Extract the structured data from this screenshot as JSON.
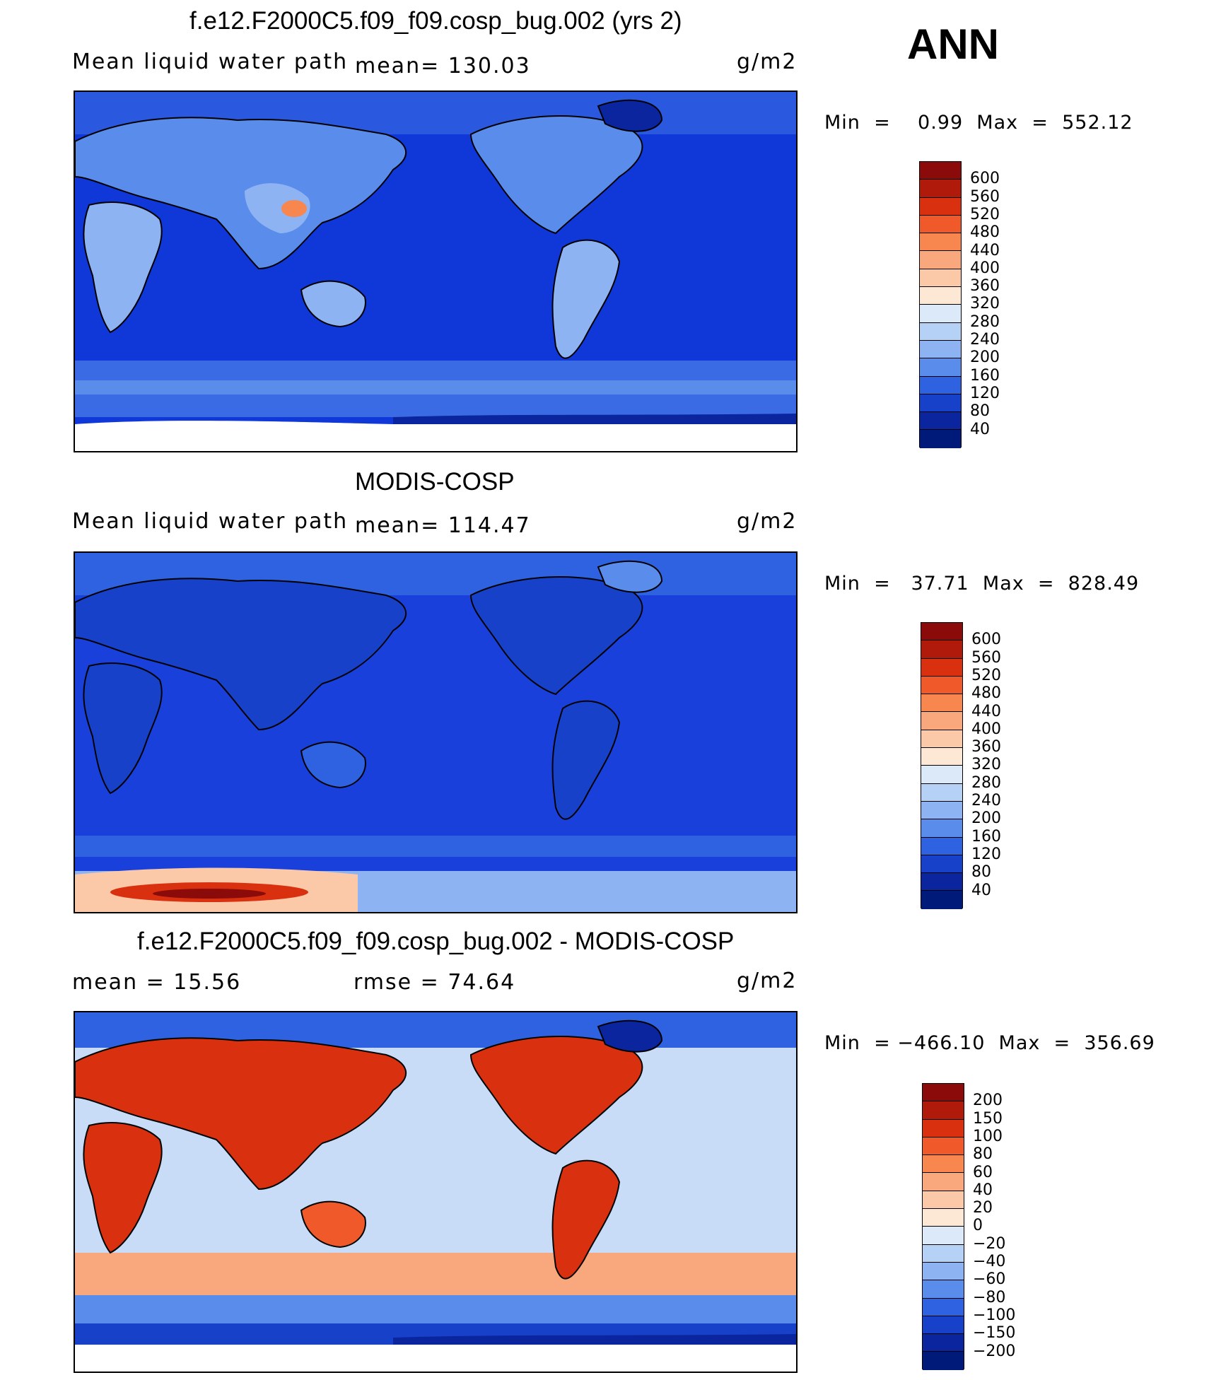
{
  "season": "ANN",
  "panels": [
    {
      "title": "f.e12.F2000C5.f09_f09.cosp_bug.002 (yrs 2)",
      "left_label": "Mean liquid water path",
      "center_label": "mean=  130.03",
      "units": "g/m2",
      "minmax": "Min  =    0.99  Max  =  552.12",
      "colorbar_labels": [
        "600",
        "560",
        "520",
        "480",
        "440",
        "400",
        "360",
        "320",
        "280",
        "240",
        "200",
        "160",
        "120",
        "80",
        "40"
      ],
      "colorbar_colors": [
        "#8b0a0a",
        "#b01a0a",
        "#d9300f",
        "#f05a2a",
        "#f7864f",
        "#f9a77c",
        "#fbc8a8",
        "#fde8d6",
        "#dbe9f9",
        "#b6d1f6",
        "#8eb3f2",
        "#5a8cec",
        "#2f62e0",
        "#1741c9",
        "#0b259e",
        "#001a7a"
      ],
      "map_base_color": "#1037d8"
    },
    {
      "title": "MODIS-COSP",
      "left_label": "Mean liquid water path",
      "center_label": "mean=  114.47",
      "units": "g/m2",
      "minmax": "Min  =   37.71  Max  =  828.49",
      "colorbar_labels": [
        "600",
        "560",
        "520",
        "480",
        "440",
        "400",
        "360",
        "320",
        "280",
        "240",
        "200",
        "160",
        "120",
        "80",
        "40"
      ],
      "colorbar_colors": [
        "#8b0a0a",
        "#b01a0a",
        "#d9300f",
        "#f05a2a",
        "#f7864f",
        "#f9a77c",
        "#fbc8a8",
        "#fde8d6",
        "#dbe9f9",
        "#b6d1f6",
        "#8eb3f2",
        "#5a8cec",
        "#2f62e0",
        "#1741c9",
        "#0b259e",
        "#001a7a"
      ],
      "map_base_color": "#1a40dc"
    },
    {
      "title": "f.e12.F2000C5.f09_f09.cosp_bug.002 - MODIS-COSP",
      "left_label": "mean  =    15.56",
      "center_label": "rmse  =    74.64",
      "units": "g/m2",
      "minmax": "Min  = −466.10  Max  =  356.69",
      "colorbar_labels": [
        "200",
        "150",
        "100",
        "80",
        "60",
        "40",
        "20",
        "0",
        "−20",
        "−40",
        "−60",
        "−80",
        "−100",
        "−150",
        "−200"
      ],
      "colorbar_colors": [
        "#8b0a0a",
        "#b01a0a",
        "#d9300f",
        "#f05a2a",
        "#f7864f",
        "#f9a77c",
        "#fbc8a8",
        "#fde8d6",
        "#dbe9f9",
        "#b6d1f6",
        "#8eb3f2",
        "#5a8cec",
        "#2f62e0",
        "#1741c9",
        "#0b259e",
        "#001a7a"
      ],
      "map_base_color": "#c8dcf8"
    }
  ]
}
